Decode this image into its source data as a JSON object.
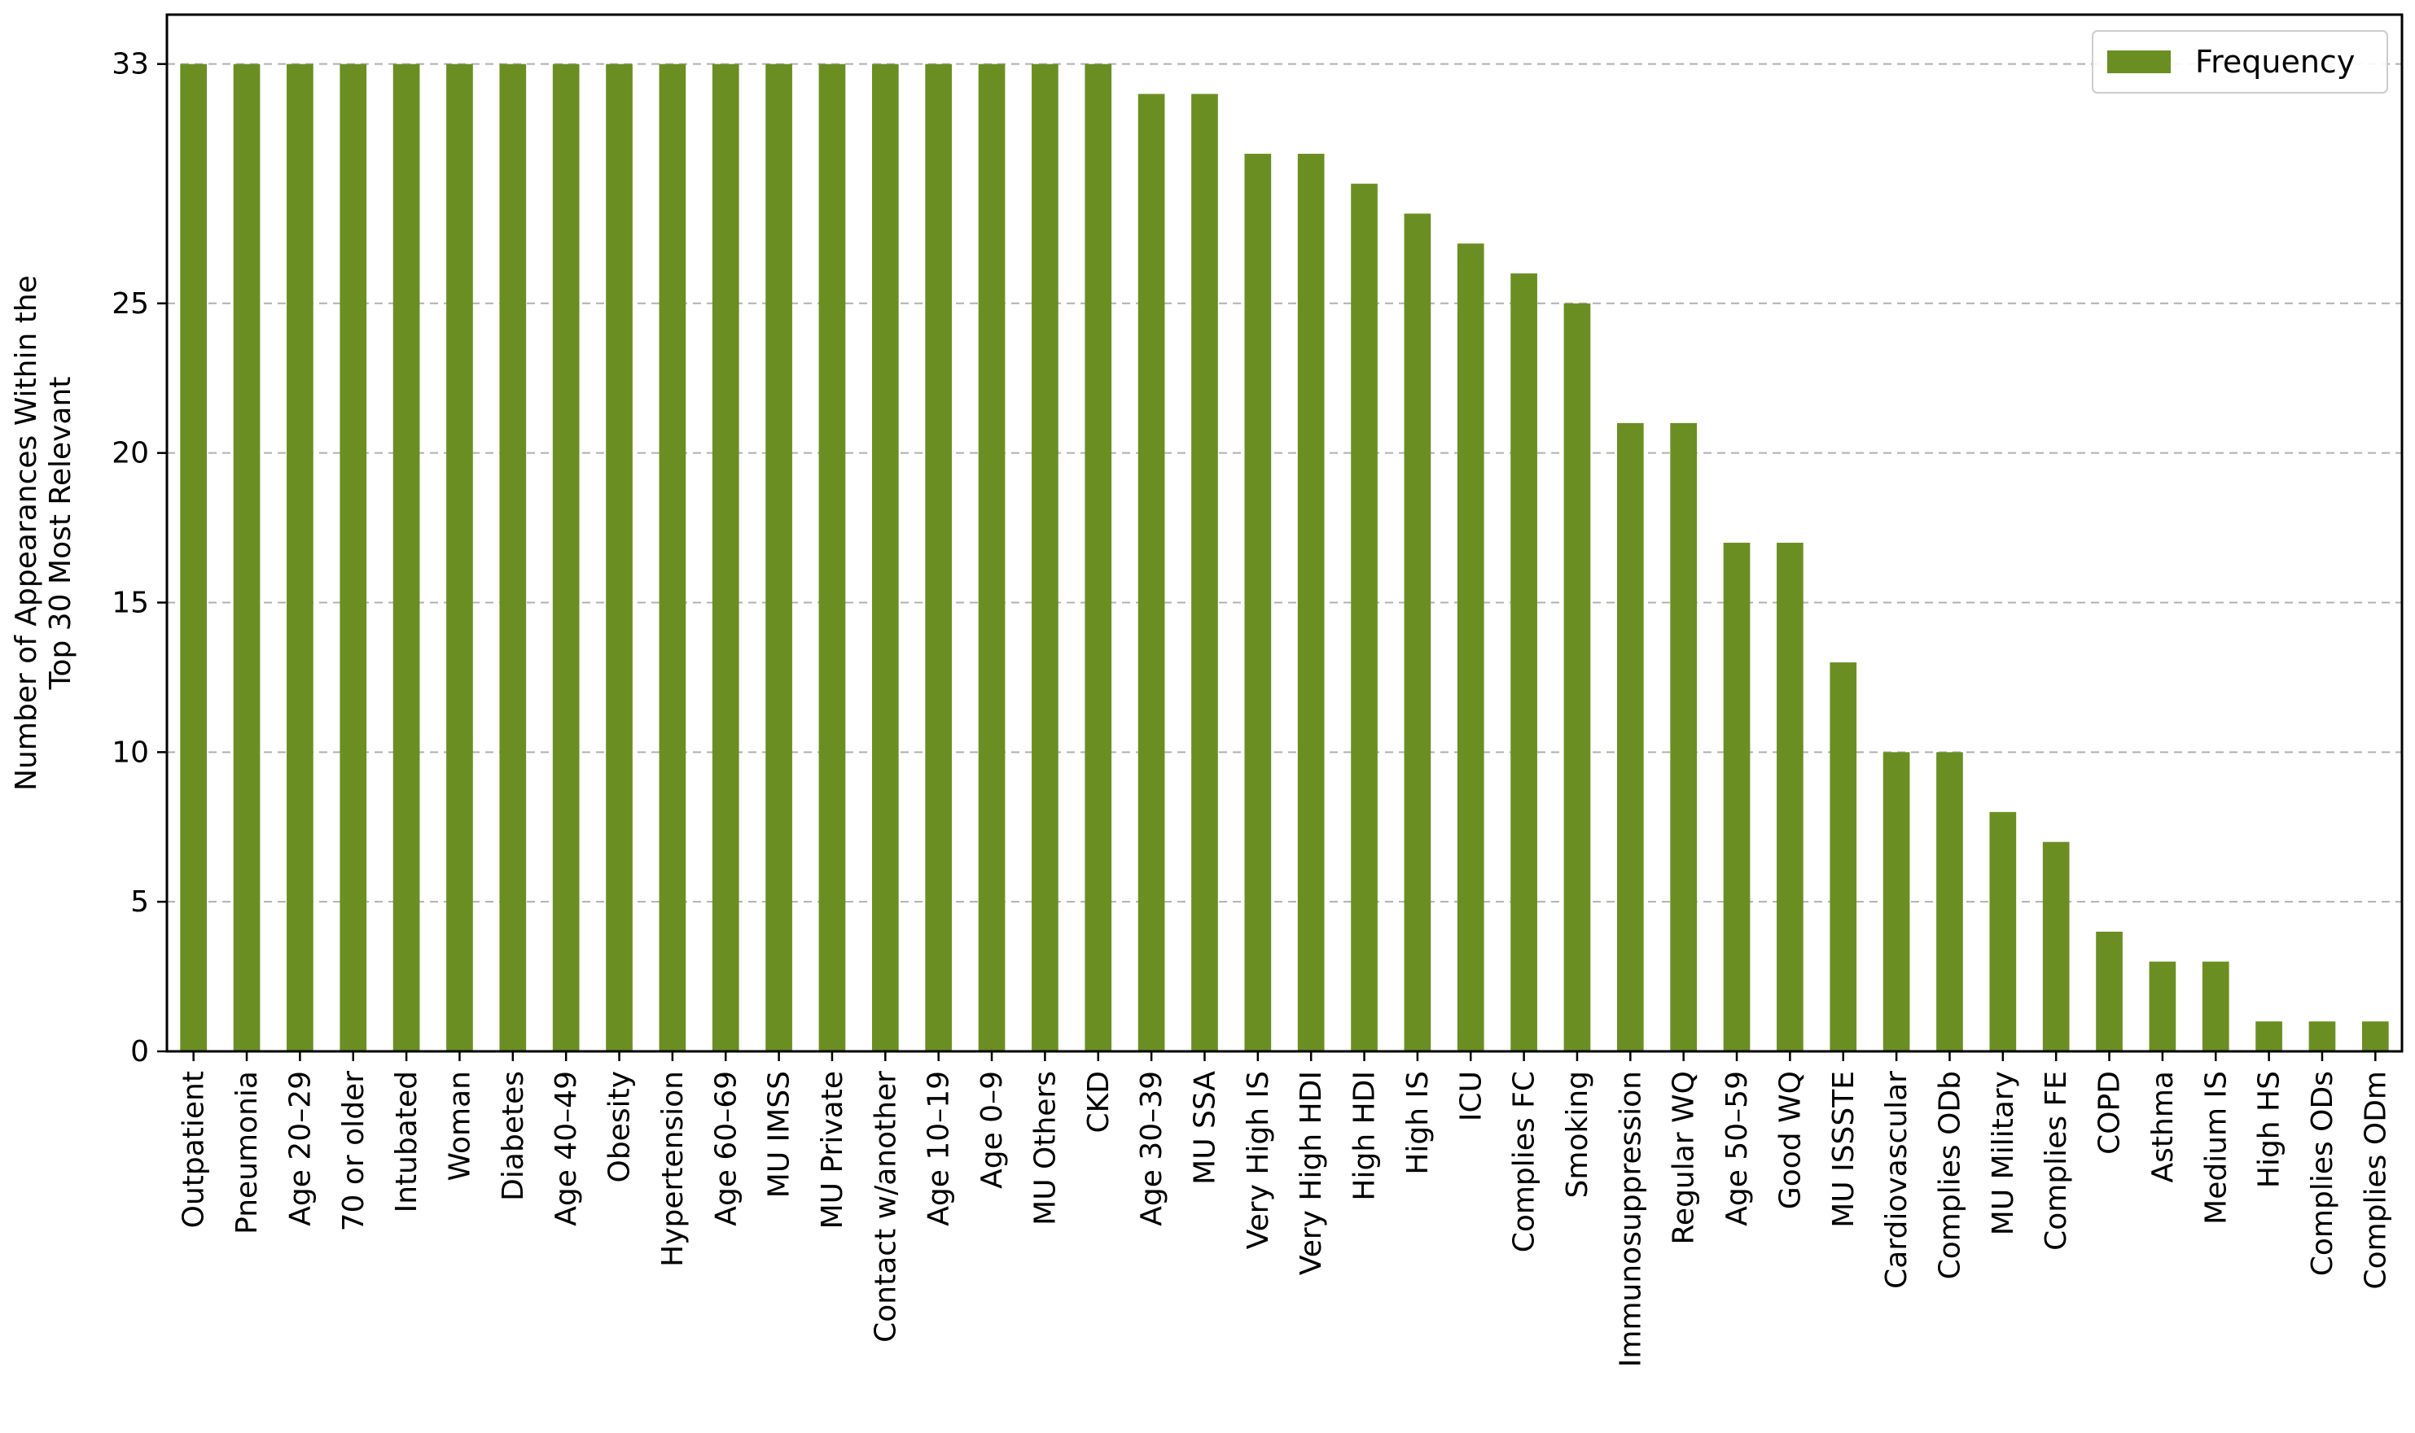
{
  "chart_data": {
    "type": "bar",
    "categories": [
      "Outpatient",
      "Pneumonia",
      "Age 20–29",
      "70 or older",
      "Intubated",
      "Woman",
      "Diabetes",
      "Age 40–49",
      "Obesity",
      "Hypertension",
      "Age 60–69",
      "MU IMSS",
      "MU Private",
      "Contact w/another",
      "Age 10–19",
      "Age 0–9",
      "MU Others",
      "CKD",
      "Age 30–39",
      "MU SSA",
      "Very High IS",
      "Very High HDI",
      "High HDI",
      "High IS",
      "ICU",
      "Complies FC",
      "Smoking",
      "Immunosuppression",
      "Regular WQ",
      "Age 50–59",
      "Good WQ",
      "MU ISSSTE",
      "Cardiovascular",
      "Complies ODb",
      "MU Military",
      "Complies FE",
      "COPD",
      "Asthma",
      "Medium IS",
      "High HS",
      "Complies ODs",
      "Complies ODm"
    ],
    "series": [
      {
        "name": "Frequency",
        "values": [
          33,
          33,
          33,
          33,
          33,
          33,
          33,
          33,
          33,
          33,
          33,
          33,
          33,
          33,
          33,
          33,
          33,
          33,
          32,
          32,
          30,
          30,
          29,
          28,
          27,
          26,
          25,
          21,
          21,
          17,
          17,
          13,
          10,
          10,
          8,
          7,
          4,
          3,
          3,
          1,
          1,
          1
        ]
      }
    ],
    "xlabel": "",
    "ylabel": "Number of Appearances Within the\nTop 30 Most Relevant",
    "ylim": [
      0,
      34.65
    ],
    "yticks": [
      0,
      5,
      10,
      15,
      20,
      25,
      33
    ],
    "grid": "horizontal dashed",
    "legend": "top-right",
    "colors": {
      "bar": "#6b8e23",
      "grid": "#b0b0b0",
      "axis": "#000000"
    }
  }
}
